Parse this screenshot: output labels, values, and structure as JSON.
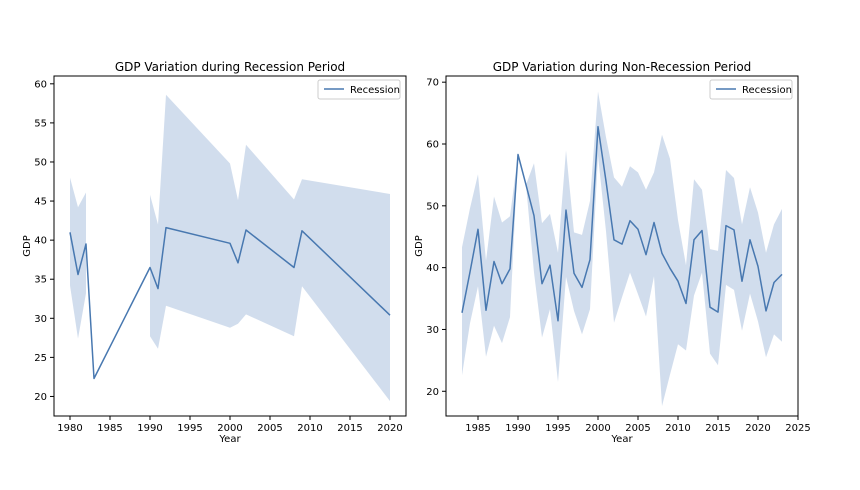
{
  "chart_data": [
    {
      "type": "line",
      "title": "GDP Variation during Recession Period",
      "xlabel": "Year",
      "ylabel": "GDP",
      "xlim": [
        1978,
        2022
      ],
      "ylim": [
        17.5,
        61
      ],
      "xticks": [
        1980,
        1985,
        1990,
        1995,
        2000,
        2005,
        2010,
        2015,
        2020
      ],
      "yticks": [
        20,
        25,
        30,
        35,
        40,
        45,
        50,
        55,
        60
      ],
      "legend": {
        "position": "top-right"
      },
      "band_color": "#c5d5e8",
      "line_color": "#4878b0",
      "series": [
        {
          "name": "Recession",
          "x": [
            1980,
            1981,
            1982,
            1983,
            1990,
            1991,
            1992,
            2000,
            2001,
            2002,
            2008,
            2009,
            2020
          ],
          "y": [
            41.0,
            35.6,
            39.5,
            22.3,
            36.5,
            33.8,
            41.6,
            39.6,
            37.1,
            41.3,
            36.5,
            41.2,
            30.4
          ],
          "upper": [
            48.0,
            44.2,
            46.1,
            null,
            45.8,
            42.0,
            58.6,
            49.8,
            45.1,
            52.2,
            45.2,
            47.8,
            45.9
          ],
          "lower": [
            34.2,
            27.4,
            33.2,
            null,
            27.7,
            26.1,
            31.6,
            28.8,
            29.3,
            30.5,
            27.7,
            34.1,
            19.4
          ]
        }
      ]
    },
    {
      "type": "line",
      "title": "GDP Variation during Non-Recession Period",
      "xlabel": "Year",
      "ylabel": "GDP",
      "xlim": [
        1981,
        2025
      ],
      "ylim": [
        16,
        71
      ],
      "xticks": [
        1985,
        1990,
        1995,
        2000,
        2005,
        2010,
        2015,
        2020,
        2025
      ],
      "yticks": [
        20,
        30,
        40,
        50,
        60,
        70
      ],
      "legend": {
        "position": "top-right"
      },
      "band_color": "#c5d5e8",
      "line_color": "#4878b0",
      "series": [
        {
          "name": "Recession",
          "x": [
            1983,
            1984,
            1985,
            1986,
            1987,
            1988,
            1989,
            1990,
            1991,
            1992,
            1993,
            1994,
            1995,
            1996,
            1997,
            1998,
            1999,
            2000,
            2001,
            2002,
            2003,
            2004,
            2005,
            2006,
            2007,
            2008,
            2009,
            2010,
            2011,
            2012,
            2013,
            2014,
            2015,
            2016,
            2017,
            2018,
            2019,
            2020,
            2021,
            2022,
            2023
          ],
          "y": [
            32.7,
            39.3,
            46.2,
            33.1,
            41.0,
            37.4,
            39.8,
            58.3,
            53.4,
            48.4,
            37.4,
            40.4,
            31.4,
            49.3,
            39.1,
            36.8,
            41.3,
            62.8,
            54.0,
            44.5,
            43.8,
            47.6,
            46.2,
            42.1,
            47.3,
            42.3,
            39.9,
            37.8,
            34.2,
            44.5,
            46.0,
            33.6,
            32.8,
            46.8,
            46.1,
            37.8,
            44.5,
            40.2,
            33.0,
            37.6,
            38.9
          ],
          "upper": [
            43.3,
            49.6,
            55.1,
            41.1,
            51.5,
            47.3,
            48.3,
            58.3,
            53.4,
            56.9,
            47.2,
            48.7,
            42.4,
            59.0,
            45.7,
            45.3,
            50.8,
            68.5,
            61.1,
            54.6,
            53.1,
            56.4,
            55.4,
            52.6,
            55.4,
            61.5,
            57.6,
            47.7,
            40.4,
            54.3,
            52.6,
            43.0,
            42.7,
            55.8,
            54.5,
            47.0,
            53.0,
            48.9,
            42.4,
            47.0,
            49.5
          ],
          "lower": [
            22.6,
            31.0,
            37.0,
            25.6,
            30.6,
            27.8,
            32.0,
            58.3,
            53.4,
            39.2,
            28.7,
            33.3,
            21.5,
            38.5,
            33.0,
            29.2,
            33.3,
            58.1,
            45.9,
            31.1,
            35.2,
            39.2,
            35.7,
            32.1,
            38.6,
            17.6,
            22.7,
            27.6,
            26.6,
            35.5,
            39.2,
            26.1,
            24.2,
            37.2,
            36.4,
            29.8,
            35.8,
            31.3,
            25.5,
            29.2,
            28.0
          ]
        }
      ]
    }
  ]
}
